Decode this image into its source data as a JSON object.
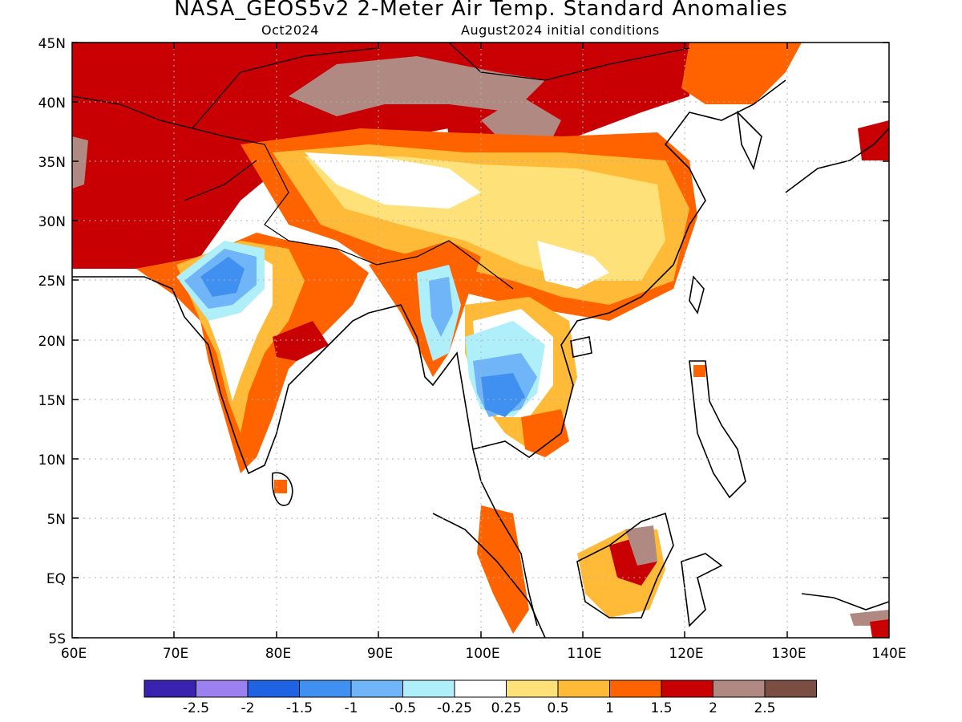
{
  "header": {
    "title": "NASA_GEOS5v2 2-Meter Air Temp. Standard Anomalies",
    "forecast_month": "Oct2024",
    "initial_conditions": "August2024 initial conditions"
  },
  "map": {
    "lon_range": [
      60,
      140
    ],
    "lat_range": [
      -5,
      45
    ],
    "lat_ticks": [
      "45N",
      "40N",
      "35N",
      "30N",
      "25N",
      "20N",
      "15N",
      "10N",
      "5N",
      "EQ",
      "5S"
    ],
    "lon_ticks": [
      "60E",
      "70E",
      "80E",
      "90E",
      "100E",
      "110E",
      "120E",
      "130E",
      "140E"
    ],
    "grid": "dotted"
  },
  "colorbar": {
    "colors": [
      "#3a22b0",
      "#9b80f0",
      "#1f63e3",
      "#3f90f0",
      "#70b5f7",
      "#afeffa",
      "#ffffff",
      "#ffe17a",
      "#ffbb37",
      "#ff6300",
      "#c80004",
      "#b08a82",
      "#7b4e44"
    ],
    "labels": [
      "-2.5",
      "-2",
      "-1.5",
      "-1",
      "-0.5",
      "-0.25",
      "0.25",
      "0.5",
      "1",
      "1.5",
      "2",
      "2.5"
    ]
  }
}
